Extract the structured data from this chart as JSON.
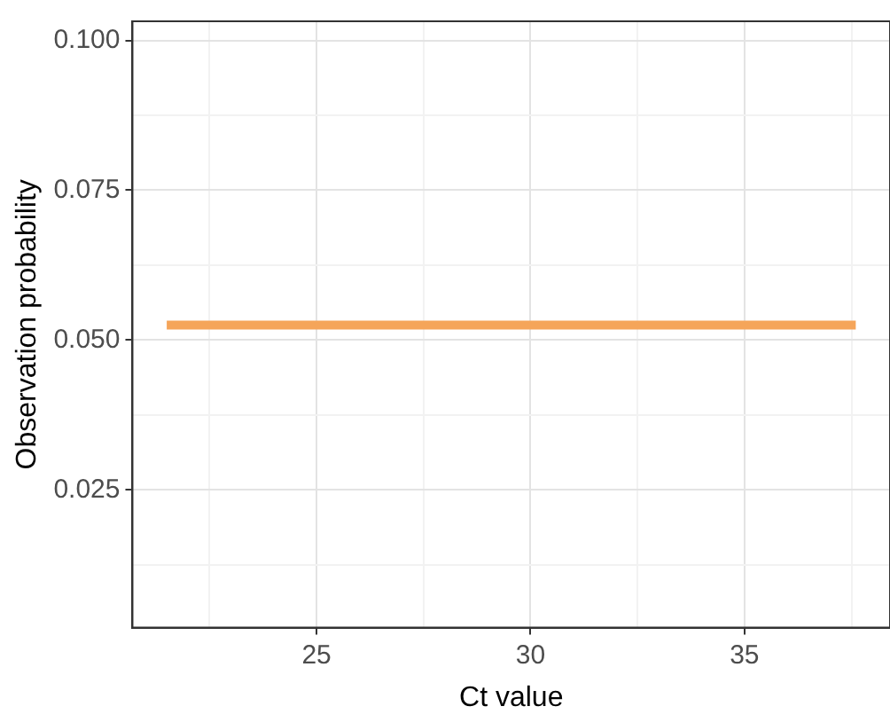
{
  "chart_data": {
    "type": "line",
    "xlabel": "Ct value",
    "ylabel": "Observation probability",
    "x": [
      21.5,
      37.6
    ],
    "series": [
      {
        "color": "#f5a55a",
        "values": [
          0.0525,
          0.0525
        ]
      }
    ],
    "xlim": [
      20.7,
      38.4
    ],
    "xticks": [
      {
        "value": 22.5,
        "label": null
      },
      25,
      {
        "value": 27.5,
        "label": null
      },
      30,
      {
        "value": 32.5,
        "label": null
      },
      35,
      {
        "value": 37.5,
        "label": null
      }
    ],
    "ylim": [
      0.002,
      0.1032
    ],
    "yticks": [
      {
        "value": 0.0125,
        "label": null
      },
      {
        "value": 0.025,
        "label": "0.025"
      },
      {
        "value": 0.0375,
        "label": null
      },
      {
        "value": 0.05,
        "label": "0.050"
      },
      {
        "value": 0.0625,
        "label": null
      },
      {
        "value": 0.075,
        "label": "0.075"
      },
      {
        "value": 0.0875,
        "label": null
      },
      {
        "value": 0.1,
        "label": "0.100"
      }
    ],
    "grid": true,
    "legend": false,
    "marker": "none",
    "line_style": "solid"
  }
}
